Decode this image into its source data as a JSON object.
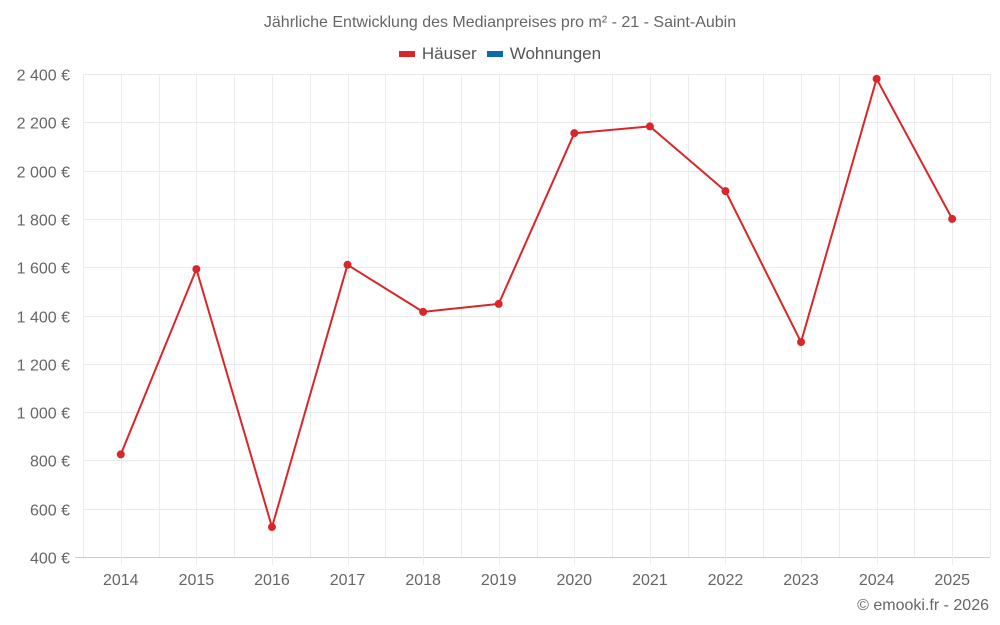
{
  "chart_data": {
    "type": "line",
    "title": "Jährliche Entwicklung des Medianpreises pro m² - 21 - Saint-Aubin",
    "xlabel": "",
    "ylabel": "",
    "categories": [
      "2014",
      "2015",
      "2016",
      "2017",
      "2018",
      "2019",
      "2020",
      "2021",
      "2022",
      "2023",
      "2024",
      "2025"
    ],
    "series": [
      {
        "name": "Häuser",
        "color": "#d9262b",
        "values": [
          825,
          1592,
          524,
          1610,
          1415,
          1448,
          2155,
          2183,
          1915,
          1290,
          2380,
          1800
        ]
      },
      {
        "name": "Wohnungen",
        "color": "#0d6aa8",
        "values": []
      }
    ],
    "ylim": [
      400,
      2400
    ],
    "yticks": [
      400,
      600,
      800,
      1000,
      1200,
      1400,
      1600,
      1800,
      2000,
      2200,
      2400
    ],
    "ytick_labels": [
      "400 €",
      "600 €",
      "800 €",
      "1 000 €",
      "1 200 €",
      "1 400 €",
      "1 600 €",
      "1 800 €",
      "2 000 €",
      "2 200 €",
      "2 400 €"
    ],
    "grid": true,
    "legend_position": "top"
  },
  "credit": "© emooki.fr - 2026"
}
